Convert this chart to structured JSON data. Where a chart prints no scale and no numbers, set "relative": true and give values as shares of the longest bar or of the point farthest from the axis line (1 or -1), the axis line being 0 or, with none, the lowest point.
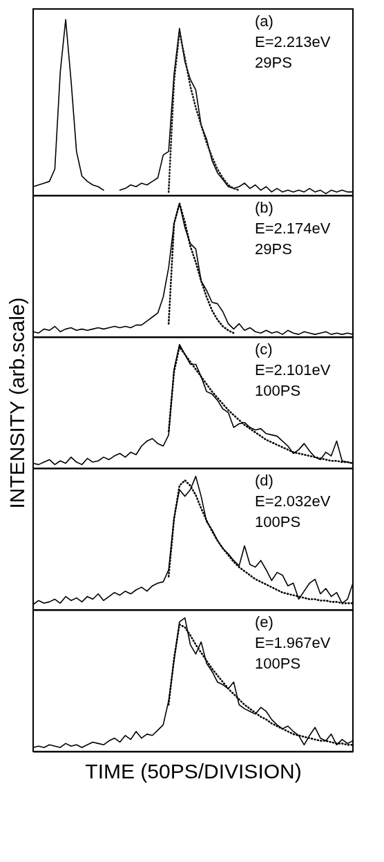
{
  "chart_data": [
    {
      "type": "line",
      "relative": true,
      "tick_labels": false,
      "annotations": [
        "(a)",
        "E=2.213eV",
        "29PS"
      ],
      "categories": [
        null,
        null,
        null,
        null,
        null,
        null,
        null,
        null,
        null,
        null,
        null,
        null,
        null,
        null,
        null,
        null,
        null,
        null,
        null,
        null,
        null,
        null,
        null,
        null,
        null,
        null,
        null,
        null,
        null,
        null,
        null,
        null,
        null,
        null,
        null,
        null,
        null,
        null,
        null,
        null,
        null,
        null,
        null,
        null,
        null,
        null,
        null,
        null,
        null,
        null,
        null,
        null,
        null,
        null,
        null,
        null,
        null,
        null,
        null,
        null
      ],
      "series": [
        {
          "color": "#000000",
          "line_style": "solid",
          "values": [
            0.05,
            0.06,
            0.07,
            0.08,
            0.15,
            0.7,
            1,
            0.65,
            0.25,
            0.11,
            0.08,
            0.06,
            0.05,
            0.03,
            null,
            null,
            0.03,
            0.04,
            0.06,
            0.05,
            0.07,
            0.06,
            0.08,
            0.1,
            0.23,
            0.25,
            0.69,
            0.95,
            0.76,
            0.66,
            0.6,
            0.4,
            0.32,
            0.2,
            0.13,
            0.09,
            0.05,
            0.04,
            0.05,
            0.07,
            0.04,
            0.06,
            0.03,
            0.05,
            0.02,
            0.04,
            0.02,
            0.03,
            0.02,
            0.03,
            0.02,
            0.04,
            0.02,
            0.03,
            0.01,
            0.03,
            0.02,
            0.03,
            0.02,
            0.02
          ]
        },
        {
          "color": "#1a1a1a",
          "line_style": "dotted",
          "values": [
            null,
            null,
            null,
            null,
            null,
            null,
            null,
            null,
            null,
            null,
            null,
            null,
            null,
            null,
            null,
            null,
            null,
            null,
            null,
            null,
            null,
            null,
            null,
            null,
            null,
            0.02,
            0.65,
            0.93,
            0.78,
            0.62,
            0.5,
            0.4,
            0.3,
            0.22,
            0.15,
            0.1,
            0.06,
            0.04,
            0.03,
            null,
            null,
            null,
            null,
            null,
            null,
            null,
            null,
            null,
            null,
            null,
            null,
            null,
            null,
            null,
            null,
            null,
            null,
            null,
            null,
            null
          ]
        }
      ]
    },
    {
      "type": "line",
      "relative": true,
      "tick_labels": false,
      "annotations": [
        "(b)",
        "E=2.174eV",
        "29PS"
      ],
      "categories": [
        null,
        null,
        null,
        null,
        null,
        null,
        null,
        null,
        null,
        null,
        null,
        null,
        null,
        null,
        null,
        null,
        null,
        null,
        null,
        null,
        null,
        null,
        null,
        null,
        null,
        null,
        null,
        null,
        null,
        null,
        null,
        null,
        null,
        null,
        null,
        null,
        null,
        null,
        null,
        null,
        null,
        null,
        null,
        null,
        null,
        null,
        null,
        null,
        null,
        null,
        null,
        null,
        null,
        null,
        null,
        null,
        null,
        null,
        null,
        null
      ],
      "series": [
        {
          "color": "#000000",
          "line_style": "solid",
          "values": [
            0.04,
            0.03,
            0.06,
            0.05,
            0.08,
            0.04,
            0.06,
            0.07,
            0.05,
            0.06,
            0.05,
            0.06,
            0.07,
            0.06,
            0.07,
            0.08,
            0.07,
            0.08,
            0.07,
            0.09,
            0.09,
            0.12,
            0.15,
            0.18,
            0.3,
            0.52,
            0.85,
            1,
            0.82,
            0.7,
            0.66,
            0.42,
            0.35,
            0.26,
            0.25,
            0.19,
            0.1,
            0.06,
            0.1,
            0.05,
            0.07,
            0.04,
            0.03,
            0.05,
            0.03,
            0.04,
            0.02,
            0.05,
            0.03,
            0.02,
            0.04,
            0.03,
            0.02,
            0.03,
            0.04,
            0.02,
            0.03,
            0.02,
            0.03,
            0.02
          ]
        },
        {
          "color": "#000000",
          "line_style": "dotted",
          "values": [
            null,
            null,
            null,
            null,
            null,
            null,
            null,
            null,
            null,
            null,
            null,
            null,
            null,
            null,
            null,
            null,
            null,
            null,
            null,
            null,
            null,
            null,
            null,
            null,
            null,
            0.1,
            0.85,
            1,
            0.86,
            0.68,
            0.56,
            0.42,
            0.3,
            0.2,
            0.13,
            0.08,
            0.05,
            0.03,
            null,
            null,
            null,
            null,
            null,
            null,
            null,
            null,
            null,
            null,
            null,
            null,
            null,
            null,
            null,
            null,
            null,
            null,
            null,
            null,
            null,
            null
          ]
        }
      ]
    },
    {
      "type": "line",
      "relative": true,
      "tick_labels": false,
      "ylabel": "INTENSITY (arb.scale)",
      "annotations": [
        "(c)",
        "E=2.101eV",
        "100PS"
      ],
      "categories": [
        null,
        null,
        null,
        null,
        null,
        null,
        null,
        null,
        null,
        null,
        null,
        null,
        null,
        null,
        null,
        null,
        null,
        null,
        null,
        null,
        null,
        null,
        null,
        null,
        null,
        null,
        null,
        null,
        null,
        null,
        null,
        null,
        null,
        null,
        null,
        null,
        null,
        null,
        null,
        null,
        null,
        null,
        null,
        null,
        null,
        null,
        null,
        null,
        null,
        null,
        null,
        null,
        null,
        null,
        null,
        null,
        null,
        null,
        null,
        null
      ],
      "series": [
        {
          "color": "#000000",
          "line_style": "solid",
          "values": [
            0.04,
            0.03,
            0.05,
            0.07,
            0.03,
            0.06,
            0.04,
            0.09,
            0.05,
            0.03,
            0.08,
            0.05,
            0.06,
            0.09,
            0.07,
            0.1,
            0.12,
            0.09,
            0.13,
            0.11,
            0.18,
            0.22,
            0.24,
            0.2,
            0.18,
            0.27,
            0.8,
            1,
            0.92,
            0.84,
            0.84,
            0.74,
            0.62,
            0.6,
            0.55,
            0.48,
            0.45,
            0.33,
            0.36,
            0.37,
            0.33,
            0.31,
            0.32,
            0.28,
            0.27,
            0.26,
            0.22,
            0.18,
            0.12,
            0.15,
            0.2,
            0.14,
            0.09,
            0.07,
            0.13,
            0.1,
            0.22,
            0.06,
            0.05,
            0.04
          ]
        },
        {
          "color": "#000000",
          "line_style": "dotted",
          "values": [
            null,
            null,
            null,
            null,
            null,
            null,
            null,
            null,
            null,
            null,
            null,
            null,
            null,
            null,
            null,
            null,
            null,
            null,
            null,
            null,
            null,
            null,
            null,
            null,
            null,
            0.3,
            0.78,
            0.98,
            0.92,
            0.86,
            0.8,
            0.74,
            0.68,
            0.62,
            0.57,
            0.52,
            0.47,
            0.43,
            0.39,
            0.35,
            0.32,
            0.29,
            0.26,
            0.23,
            0.21,
            0.19,
            0.17,
            0.15,
            0.13,
            0.12,
            0.11,
            0.1,
            0.09,
            0.08,
            0.07,
            0.06,
            0.06,
            0.05,
            0.05,
            0.04
          ]
        }
      ]
    },
    {
      "type": "line",
      "relative": true,
      "tick_labels": false,
      "annotations": [
        "(d)",
        "E=2.032eV",
        "100PS"
      ],
      "categories": [
        null,
        null,
        null,
        null,
        null,
        null,
        null,
        null,
        null,
        null,
        null,
        null,
        null,
        null,
        null,
        null,
        null,
        null,
        null,
        null,
        null,
        null,
        null,
        null,
        null,
        null,
        null,
        null,
        null,
        null,
        null,
        null,
        null,
        null,
        null,
        null,
        null,
        null,
        null,
        null,
        null,
        null,
        null,
        null,
        null,
        null,
        null,
        null,
        null,
        null,
        null,
        null,
        null,
        null,
        null,
        null,
        null,
        null,
        null,
        null
      ],
      "series": [
        {
          "color": "#000000",
          "line_style": "solid",
          "values": [
            0.04,
            0.07,
            0.05,
            0.06,
            0.08,
            0.05,
            0.1,
            0.07,
            0.09,
            0.06,
            0.1,
            0.08,
            0.12,
            0.07,
            0.1,
            0.13,
            0.11,
            0.14,
            0.12,
            0.15,
            0.17,
            0.14,
            0.18,
            0.2,
            0.21,
            0.3,
            0.69,
            0.9,
            0.85,
            0.9,
            1,
            0.85,
            0.66,
            0.6,
            0.52,
            0.46,
            0.42,
            0.37,
            0.33,
            0.48,
            0.34,
            0.32,
            0.37,
            0.3,
            0.22,
            0.28,
            0.26,
            0.18,
            0.2,
            0.08,
            0.14,
            0.2,
            0.23,
            0.12,
            0.16,
            0.1,
            0.13,
            0.05,
            0.08,
            0.2
          ]
        },
        {
          "color": "#000000",
          "line_style": "dotted",
          "values": [
            null,
            null,
            null,
            null,
            null,
            null,
            null,
            null,
            null,
            null,
            null,
            null,
            null,
            null,
            null,
            null,
            null,
            null,
            null,
            null,
            null,
            null,
            null,
            null,
            null,
            0.25,
            0.68,
            0.93,
            0.97,
            0.93,
            0.86,
            0.76,
            0.67,
            0.59,
            0.52,
            0.46,
            0.41,
            0.36,
            0.32,
            0.29,
            0.26,
            0.23,
            0.21,
            0.19,
            0.17,
            0.15,
            0.13,
            0.12,
            0.11,
            0.1,
            0.09,
            0.08,
            0.08,
            0.07,
            0.07,
            0.06,
            0.06,
            0.05,
            0.05,
            0.05
          ]
        }
      ]
    },
    {
      "type": "line",
      "relative": true,
      "tick_labels": false,
      "xlabel": "TIME (50PS/DIVISION)",
      "annotations": [
        "(e)",
        "E=1.967eV",
        "100PS"
      ],
      "categories": [
        null,
        null,
        null,
        null,
        null,
        null,
        null,
        null,
        null,
        null,
        null,
        null,
        null,
        null,
        null,
        null,
        null,
        null,
        null,
        null,
        null,
        null,
        null,
        null,
        null,
        null,
        null,
        null,
        null,
        null,
        null,
        null,
        null,
        null,
        null,
        null,
        null,
        null,
        null,
        null,
        null,
        null,
        null,
        null,
        null,
        null,
        null,
        null,
        null,
        null,
        null,
        null,
        null,
        null,
        null,
        null,
        null,
        null,
        null,
        null
      ],
      "series": [
        {
          "color": "#000000",
          "line_style": "solid",
          "values": [
            0.03,
            0.04,
            0.03,
            0.05,
            0.04,
            0.03,
            0.06,
            0.04,
            0.05,
            0.03,
            0.05,
            0.07,
            0.06,
            0.05,
            0.08,
            0.1,
            0.07,
            0.12,
            0.09,
            0.15,
            0.1,
            0.13,
            0.12,
            0.16,
            0.2,
            0.38,
            0.68,
            0.97,
            1,
            0.8,
            0.73,
            0.82,
            0.66,
            0.6,
            0.52,
            0.5,
            0.47,
            0.52,
            0.35,
            0.32,
            0.3,
            0.28,
            0.33,
            0.3,
            0.24,
            0.2,
            0.17,
            0.19,
            0.15,
            0.12,
            0.05,
            0.12,
            0.18,
            0.1,
            0.08,
            0.13,
            0.05,
            0.09,
            0.06,
            0.08
          ]
        },
        {
          "color": "#000000",
          "line_style": "dotted",
          "values": [
            null,
            null,
            null,
            null,
            null,
            null,
            null,
            null,
            null,
            null,
            null,
            null,
            null,
            null,
            null,
            null,
            null,
            null,
            null,
            null,
            null,
            null,
            null,
            null,
            null,
            0.35,
            0.7,
            0.95,
            0.93,
            0.87,
            0.8,
            0.74,
            0.68,
            0.62,
            0.57,
            0.52,
            0.47,
            0.43,
            0.39,
            0.35,
            0.32,
            0.29,
            0.26,
            0.24,
            0.21,
            0.19,
            0.17,
            0.15,
            0.13,
            0.12,
            0.11,
            0.1,
            0.09,
            0.08,
            0.08,
            0.07,
            0.06,
            0.06,
            0.05,
            0.05
          ]
        }
      ]
    }
  ]
}
